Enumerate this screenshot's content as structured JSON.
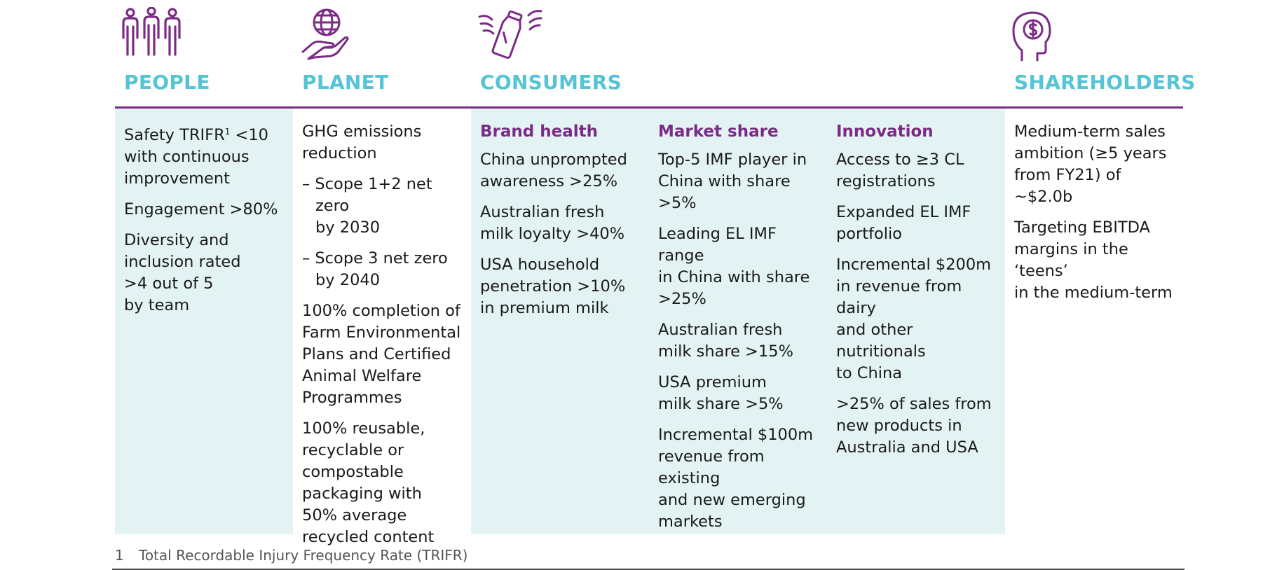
{
  "colors": {
    "accent": "#7b2a86",
    "heading": "#55c4d6",
    "tint": "#e3f3f4"
  },
  "headings": {
    "people": "PEOPLE",
    "planet": "PLANET",
    "consumers": "CONSUMERS",
    "shareholders": "SHAREHOLDERS"
  },
  "icons": {
    "people": "people-icon",
    "planet": "globe-in-hand-icon",
    "consumers": "milk-bottle-icon",
    "shareholders": "head-with-dollar-icon"
  },
  "people": {
    "items": [
      "Engagement >80%",
      "Diversity and\ninclusion rated\n>4 out of 5\nby team"
    ],
    "safety_prefix": "Safety TRIFR",
    "safety_sup": "1",
    "safety_suffix": " <10\nwith continuous\nimprovement"
  },
  "planet": {
    "items": [
      "GHG emissions\nreduction",
      "– Scope 1+2 net zero\nby 2030",
      "– Scope 3 net zero\nby 2040",
      "100% completion of\nFarm Environmental\nPlans and Certified\nAnimal Welfare\nProgrammes",
      "100% reusable,\nrecyclable or\ncompostable\npackaging with\n50% average\nrecycled content"
    ]
  },
  "brand_health": {
    "title": "Brand health",
    "items": [
      "China unprompted\nawareness >25%",
      "Australian fresh\nmilk loyalty >40%",
      "USA household\npenetration >10%\nin premium milk"
    ]
  },
  "market_share": {
    "title": "Market share",
    "items": [
      "Top-5 IMF player in\nChina with share\n>5%",
      "Leading EL IMF range\nin China with share\n>25%",
      "Australian fresh\nmilk share >15%",
      "USA premium\nmilk share >5%",
      "Incremental $100m\nrevenue from existing\nand new emerging\nmarkets"
    ]
  },
  "innovation": {
    "title": "Innovation",
    "items": [
      "Access to ≥3 CL\nregistrations",
      "Expanded EL IMF\nportfolio",
      "Incremental $200m\nin revenue from dairy\nand other nutritionals\nto China",
      ">25% of sales from\nnew products in\nAustralia and USA"
    ]
  },
  "shareholders": {
    "items": [
      "Medium-term sales\nambition (≥5 years\nfrom FY21) of ~$2.0b",
      "Targeting EBITDA\nmargins in the ‘teens’\nin the medium-term"
    ]
  },
  "footnote": {
    "number": "1",
    "text": "Total Recordable Injury Frequency Rate (TRIFR)"
  }
}
